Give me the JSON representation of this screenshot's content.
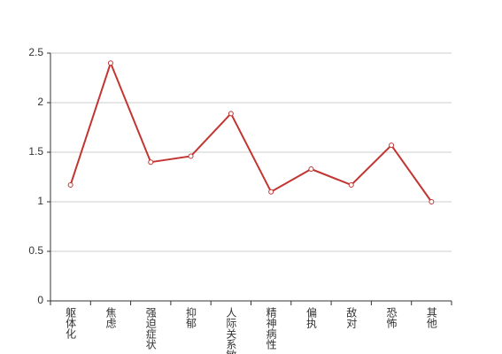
{
  "chart_data": {
    "type": "line",
    "categories": [
      "躯体化",
      "焦虑",
      "强迫症状",
      "抑郁",
      "人际关系敏感",
      "精神病性",
      "偏执",
      "敌对",
      "恐怖",
      "其他"
    ],
    "values": [
      1.17,
      2.4,
      1.4,
      1.46,
      1.89,
      1.1,
      1.33,
      1.17,
      1.57,
      1.0
    ],
    "color": "#c23531",
    "ylim": [
      0,
      2.5
    ],
    "yticks": [
      0,
      0.5,
      1,
      1.5,
      2,
      2.5
    ],
    "grid": true
  }
}
